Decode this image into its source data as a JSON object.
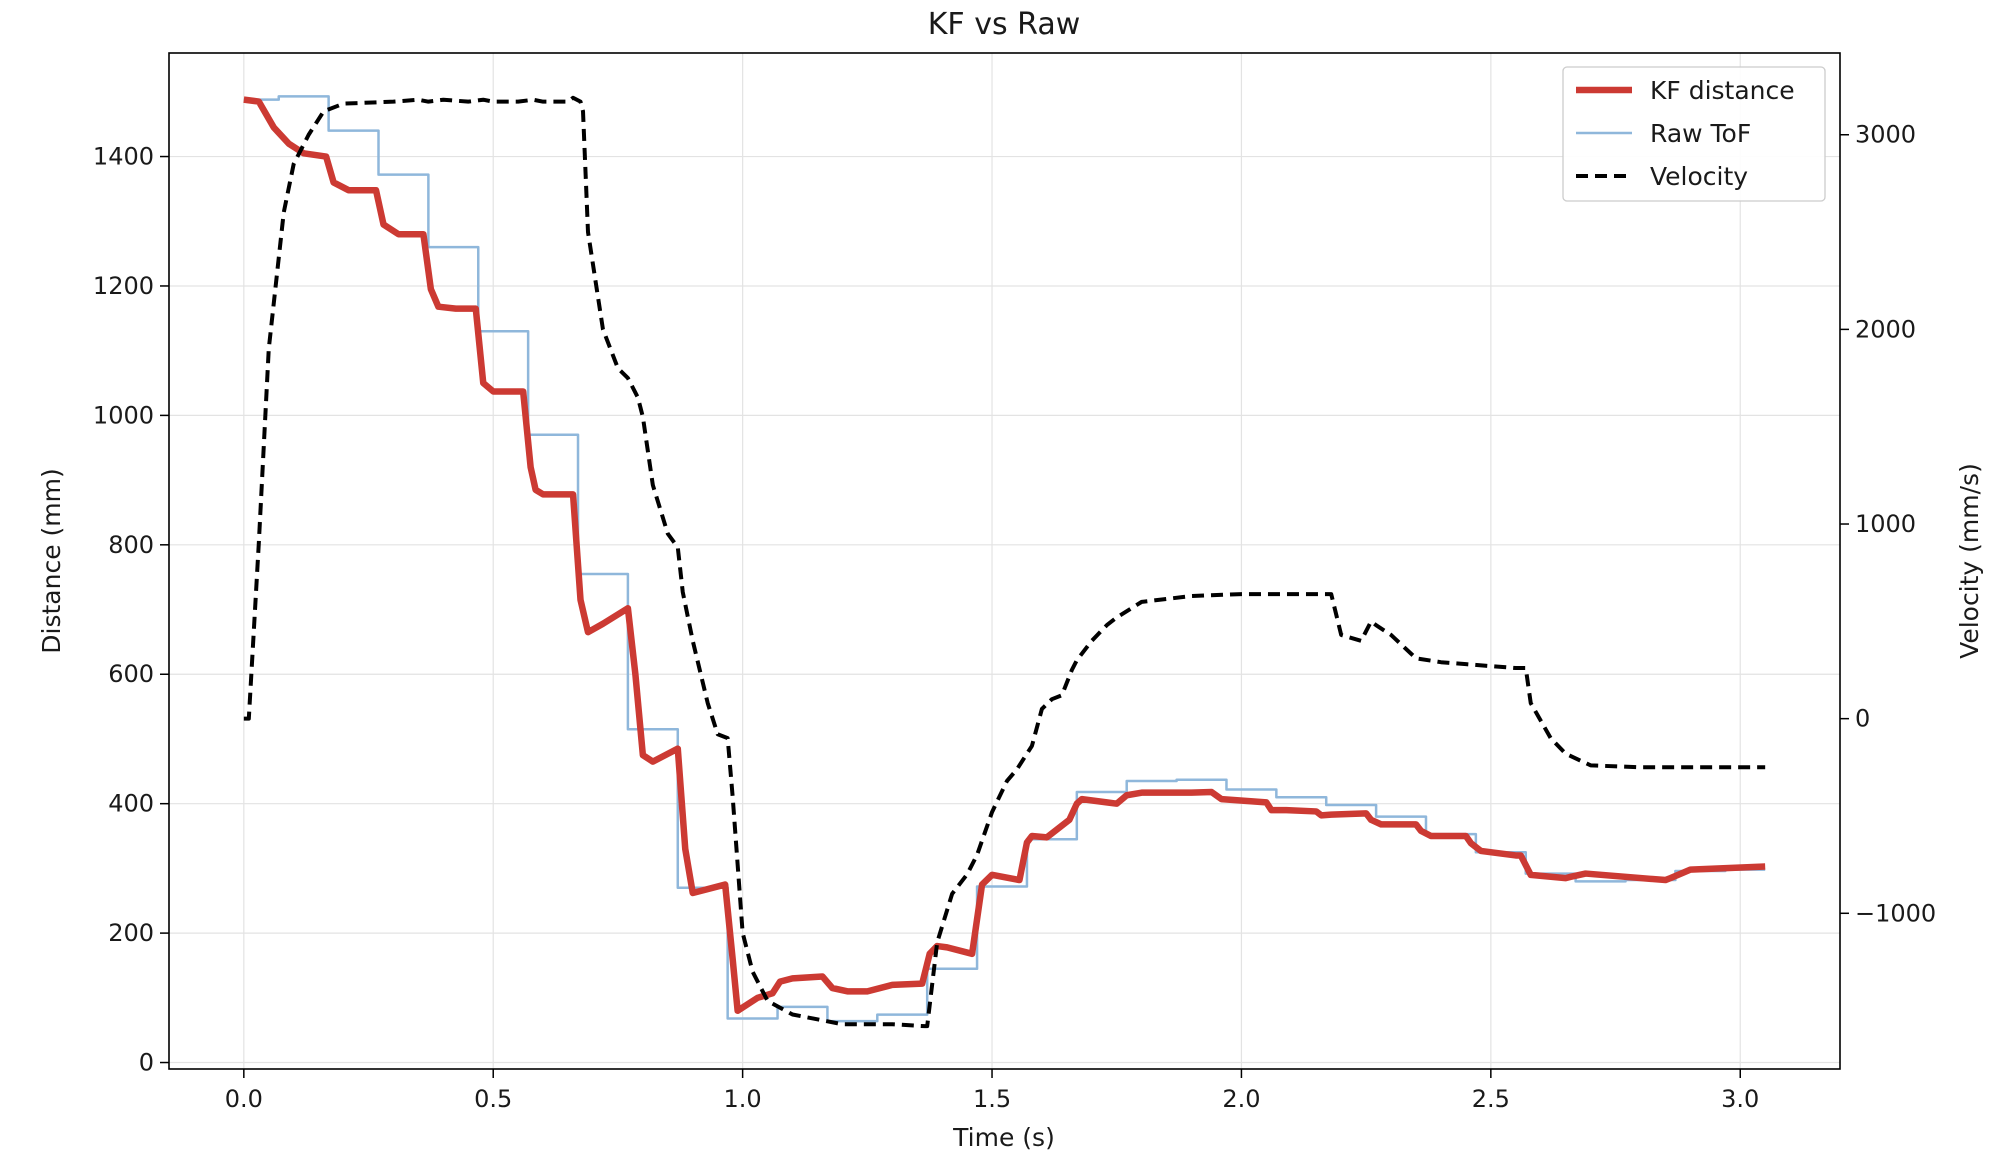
{
  "chart_data": {
    "type": "line",
    "title": "KF vs Raw",
    "xlabel": "Time (s)",
    "ylabel": "Distance (mm)",
    "y2label": "Velocity (mm/s)",
    "xlim": [
      -0.15,
      3.2
    ],
    "ylim": [
      -10,
      1560
    ],
    "y2lim": [
      -1800,
      3420
    ],
    "xticks": [
      "0.0",
      "0.5",
      "1.0",
      "1.5",
      "2.0",
      "2.5",
      "3.0"
    ],
    "yticks": [
      "0",
      "200",
      "400",
      "600",
      "800",
      "1000",
      "1200",
      "1400"
    ],
    "y2ticks": [
      "−1000",
      "0",
      "1000",
      "2000",
      "3000"
    ],
    "grid": true,
    "legend_position": "top-right",
    "series": [
      {
        "name": "KF distance",
        "axis": "left",
        "color": "#cc3a33",
        "style": "solid-thick",
        "x": [
          0.0,
          0.03,
          0.06,
          0.09,
          0.12,
          0.165,
          0.18,
          0.21,
          0.265,
          0.28,
          0.31,
          0.36,
          0.375,
          0.39,
          0.425,
          0.465,
          0.48,
          0.5,
          0.56,
          0.575,
          0.585,
          0.6,
          0.66,
          0.675,
          0.69,
          0.72,
          0.77,
          0.785,
          0.8,
          0.82,
          0.87,
          0.885,
          0.9,
          0.965,
          0.98,
          0.99,
          1.03,
          1.06,
          1.075,
          1.1,
          1.16,
          1.18,
          1.21,
          1.25,
          1.3,
          1.36,
          1.375,
          1.39,
          1.41,
          1.46,
          1.48,
          1.5,
          1.555,
          1.57,
          1.58,
          1.61,
          1.655,
          1.67,
          1.68,
          1.73,
          1.75,
          1.77,
          1.8,
          1.9,
          1.94,
          1.96,
          2.05,
          2.06,
          2.09,
          2.15,
          2.16,
          2.18,
          2.25,
          2.26,
          2.28,
          2.35,
          2.36,
          2.38,
          2.45,
          2.46,
          2.48,
          2.55,
          2.56,
          2.58,
          2.65,
          2.66,
          2.69,
          2.85,
          2.86,
          2.9,
          3.05
        ],
        "y": [
          1488,
          1485,
          1445,
          1420,
          1405,
          1400,
          1360,
          1348,
          1348,
          1295,
          1280,
          1280,
          1195,
          1168,
          1165,
          1165,
          1050,
          1037,
          1037,
          920,
          885,
          878,
          878,
          715,
          665,
          678,
          702,
          600,
          475,
          465,
          485,
          330,
          262,
          275,
          160,
          80,
          100,
          107,
          125,
          130,
          133,
          115,
          110,
          110,
          120,
          122,
          168,
          180,
          178,
          168,
          275,
          290,
          282,
          340,
          350,
          348,
          375,
          400,
          407,
          402,
          400,
          413,
          417,
          417,
          418,
          407,
          402,
          390,
          390,
          388,
          382,
          383,
          385,
          375,
          368,
          368,
          358,
          350,
          350,
          339,
          327,
          320,
          320,
          290,
          285,
          287,
          292,
          282,
          285,
          298,
          303
        ]
      },
      {
        "name": "Raw ToF",
        "axis": "left",
        "color": "#8fb7db",
        "style": "solid-thin",
        "x": [
          0.0,
          0.07,
          0.07,
          0.17,
          0.17,
          0.27,
          0.27,
          0.37,
          0.37,
          0.47,
          0.47,
          0.57,
          0.57,
          0.67,
          0.67,
          0.77,
          0.77,
          0.87,
          0.87,
          0.97,
          0.97,
          1.07,
          1.07,
          1.17,
          1.17,
          1.27,
          1.27,
          1.37,
          1.37,
          1.47,
          1.47,
          1.57,
          1.57,
          1.67,
          1.67,
          1.77,
          1.77,
          1.87,
          1.87,
          1.97,
          1.97,
          2.07,
          2.07,
          2.17,
          2.17,
          2.27,
          2.27,
          2.37,
          2.37,
          2.47,
          2.47,
          2.57,
          2.57,
          2.67,
          2.67,
          2.77,
          2.77,
          2.87,
          2.87,
          2.97,
          2.97,
          3.05
        ],
        "y": [
          1488,
          1488,
          1493,
          1493,
          1440,
          1440,
          1372,
          1372,
          1260,
          1260,
          1130,
          1130,
          970,
          970,
          755,
          755,
          515,
          515,
          270,
          270,
          68,
          68,
          86,
          86,
          64,
          64,
          74,
          74,
          145,
          145,
          272,
          272,
          345,
          345,
          418,
          418,
          435,
          435,
          437,
          437,
          422,
          422,
          410,
          410,
          398,
          398,
          380,
          380,
          353,
          353,
          325,
          325,
          292,
          292,
          280,
          280,
          282,
          282,
          296,
          296,
          298,
          298
        ]
      },
      {
        "name": "Velocity",
        "axis": "right",
        "color": "#000000",
        "style": "dashed",
        "x": [
          0.0,
          0.01,
          0.03,
          0.05,
          0.08,
          0.1,
          0.13,
          0.16,
          0.2,
          0.3,
          0.35,
          0.37,
          0.4,
          0.45,
          0.48,
          0.5,
          0.55,
          0.58,
          0.6,
          0.65,
          0.66,
          0.675,
          0.68,
          0.69,
          0.72,
          0.75,
          0.77,
          0.79,
          0.8,
          0.82,
          0.85,
          0.87,
          0.88,
          0.9,
          0.93,
          0.95,
          0.97,
          0.98,
          0.99,
          1.0,
          1.02,
          1.05,
          1.1,
          1.2,
          1.3,
          1.365,
          1.37,
          1.39,
          1.42,
          1.45,
          1.47,
          1.5,
          1.53,
          1.55,
          1.58,
          1.6,
          1.62,
          1.64,
          1.66,
          1.67,
          1.7,
          1.73,
          1.75,
          1.8,
          1.9,
          2.0,
          2.1,
          2.18,
          2.2,
          2.24,
          2.26,
          2.27,
          2.3,
          2.35,
          2.4,
          2.45,
          2.55,
          2.57,
          2.58,
          2.62,
          2.65,
          2.7,
          2.8,
          3.05
        ],
        "y": [
          0,
          0,
          900,
          1900,
          2600,
          2850,
          3000,
          3120,
          3160,
          3170,
          3180,
          3170,
          3180,
          3170,
          3180,
          3170,
          3170,
          3180,
          3170,
          3170,
          3190,
          3170,
          3120,
          2500,
          2000,
          1800,
          1750,
          1650,
          1550,
          1200,
          950,
          880,
          650,
          400,
          80,
          -80,
          -100,
          -400,
          -750,
          -1100,
          -1300,
          -1450,
          -1520,
          -1570,
          -1570,
          -1580,
          -1580,
          -1150,
          -900,
          -800,
          -700,
          -480,
          -320,
          -260,
          -140,
          50,
          100,
          120,
          250,
          300,
          400,
          480,
          520,
          600,
          630,
          640,
          640,
          640,
          430,
          400,
          500,
          480,
          430,
          310,
          290,
          280,
          260,
          260,
          80,
          -100,
          -180,
          -240,
          -250,
          -250
        ]
      }
    ]
  }
}
